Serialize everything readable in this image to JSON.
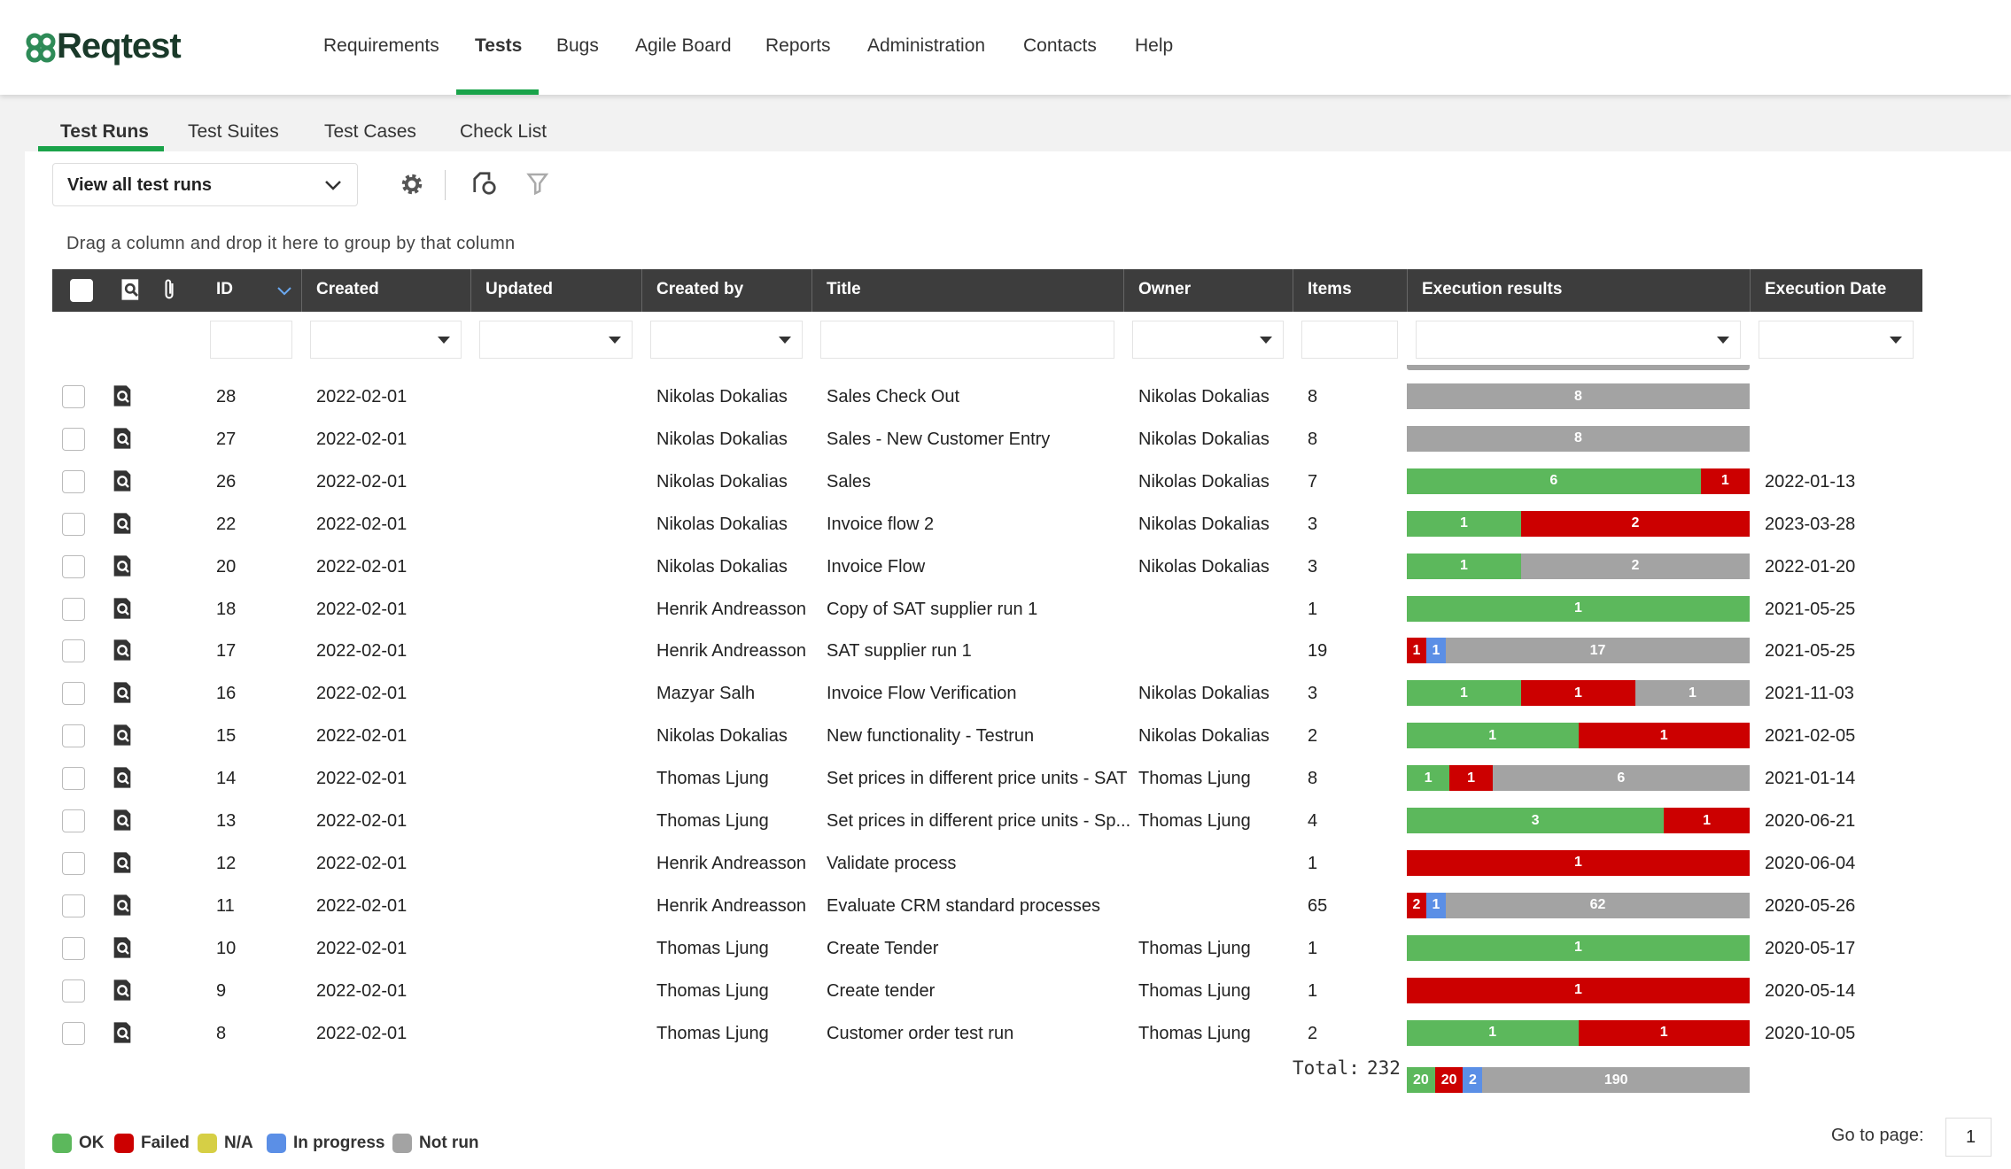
{
  "header": {
    "logo": "Reqtest",
    "nav": [
      "Requirements",
      "Tests",
      "Bugs",
      "Agile Board",
      "Reports",
      "Administration",
      "Contacts",
      "Help"
    ],
    "active_nav": 1
  },
  "subtabs": {
    "items": [
      "Test Runs",
      "Test Suites",
      "Test Cases",
      "Check List"
    ],
    "active": 0
  },
  "toolbar": {
    "view": "View all test runs",
    "group_hint": "Drag a column and drop it here to group by that column"
  },
  "table": {
    "columns": [
      "ID",
      "Created",
      "Updated",
      "Created by",
      "Title",
      "Owner",
      "Items",
      "Execution results",
      "Execution Date"
    ],
    "rows": [
      {
        "id": 28,
        "created": "2022-02-01",
        "created_by": "Nikolas Dokalias",
        "title": "Sales Check Out",
        "owner": "Nikolas Dokalias",
        "items": 8,
        "results": [
          null,
          null,
          null,
          null,
          8
        ],
        "date": null
      },
      {
        "id": 27,
        "created": "2022-02-01",
        "created_by": "Nikolas Dokalias",
        "title": "Sales - New Customer Entry",
        "owner": "Nikolas Dokalias",
        "items": 8,
        "results": [
          null,
          null,
          null,
          null,
          8
        ],
        "date": null
      },
      {
        "id": 26,
        "created": "2022-02-01",
        "created_by": "Nikolas Dokalias",
        "title": "Sales",
        "owner": "Nikolas Dokalias",
        "items": 7,
        "results": [
          6,
          1,
          null,
          null,
          null
        ],
        "date": "2022-01-13"
      },
      {
        "id": 22,
        "created": "2022-02-01",
        "created_by": "Nikolas Dokalias",
        "title": "Invoice flow 2",
        "owner": "Nikolas Dokalias",
        "items": 3,
        "results": [
          1,
          2,
          null,
          null,
          null
        ],
        "date": "2023-03-28"
      },
      {
        "id": 20,
        "created": "2022-02-01",
        "created_by": "Nikolas Dokalias",
        "title": "Invoice Flow",
        "owner": "Nikolas Dokalias",
        "items": 3,
        "results": [
          1,
          null,
          null,
          null,
          2
        ],
        "date": "2022-01-20"
      },
      {
        "id": 18,
        "created": "2022-02-01",
        "created_by": "Henrik Andreasson",
        "title": "Copy of SAT supplier run 1",
        "owner": null,
        "items": 1,
        "results": [
          1,
          null,
          null,
          null,
          null
        ],
        "date": "2021-05-25"
      },
      {
        "id": 17,
        "created": "2022-02-01",
        "created_by": "Henrik Andreasson",
        "title": "SAT supplier run 1",
        "owner": null,
        "items": 19,
        "results": [
          null,
          1,
          null,
          1,
          17
        ],
        "date": "2021-05-25"
      },
      {
        "id": 16,
        "created": "2022-02-01",
        "created_by": "Mazyar Salh",
        "title": "Invoice Flow Verification",
        "owner": "Nikolas Dokalias",
        "items": 3,
        "results": [
          1,
          1,
          null,
          null,
          1
        ],
        "date": "2021-11-03"
      },
      {
        "id": 15,
        "created": "2022-02-01",
        "created_by": "Nikolas Dokalias",
        "title": "New functionality - Testrun",
        "owner": "Nikolas Dokalias",
        "items": 2,
        "results": [
          1,
          1,
          null,
          null,
          null
        ],
        "date": "2021-02-05"
      },
      {
        "id": 14,
        "created": "2022-02-01",
        "created_by": "Thomas Ljung",
        "title": "Set prices in different price units - SAT",
        "owner": "Thomas Ljung",
        "items": 8,
        "results": [
          1,
          1,
          null,
          null,
          6
        ],
        "date": "2021-01-14"
      },
      {
        "id": 13,
        "created": "2022-02-01",
        "created_by": "Thomas Ljung",
        "title": "Set prices in different price units - Sp...",
        "owner": "Thomas Ljung",
        "items": 4,
        "results": [
          3,
          1,
          null,
          null,
          null
        ],
        "date": "2020-06-21"
      },
      {
        "id": 12,
        "created": "2022-02-01",
        "created_by": "Henrik Andreasson",
        "title": "Validate process",
        "owner": null,
        "items": 1,
        "results": [
          null,
          1,
          null,
          null,
          null
        ],
        "date": "2020-06-04"
      },
      {
        "id": 11,
        "created": "2022-02-01",
        "created_by": "Henrik Andreasson",
        "title": "Evaluate CRM standard processes",
        "owner": null,
        "items": 65,
        "results": [
          null,
          2,
          null,
          1,
          62
        ],
        "date": "2020-05-26"
      },
      {
        "id": 10,
        "created": "2022-02-01",
        "created_by": "Thomas Ljung",
        "title": "Create Tender",
        "owner": "Thomas Ljung",
        "items": 1,
        "results": [
          1,
          null,
          null,
          null,
          null
        ],
        "date": "2020-05-17"
      },
      {
        "id": 9,
        "created": "2022-02-01",
        "created_by": "Thomas Ljung",
        "title": "Create tender",
        "owner": "Thomas Ljung",
        "items": 1,
        "results": [
          null,
          1,
          null,
          null,
          null
        ],
        "date": "2020-05-14"
      },
      {
        "id": 8,
        "created": "2022-02-01",
        "created_by": "Thomas Ljung",
        "title": "Customer order test run",
        "owner": "Thomas Ljung",
        "items": 2,
        "results": [
          1,
          1,
          null,
          null,
          null
        ],
        "date": "2020-10-05"
      }
    ],
    "total": {
      "label": "Total:",
      "items": 232,
      "results": [
        20,
        20,
        null,
        2,
        190
      ]
    }
  },
  "legend": [
    {
      "name": "OK",
      "color": "#5cb85c"
    },
    {
      "name": "Failed",
      "color": "#cc0000"
    },
    {
      "name": "N/A",
      "color": "#d6cf45"
    },
    {
      "name": "In progress",
      "color": "#5b8fe6"
    },
    {
      "name": "Not run",
      "color": "#a3a3a3"
    }
  ],
  "pagination": {
    "label": "Go to page:",
    "page": 1
  }
}
